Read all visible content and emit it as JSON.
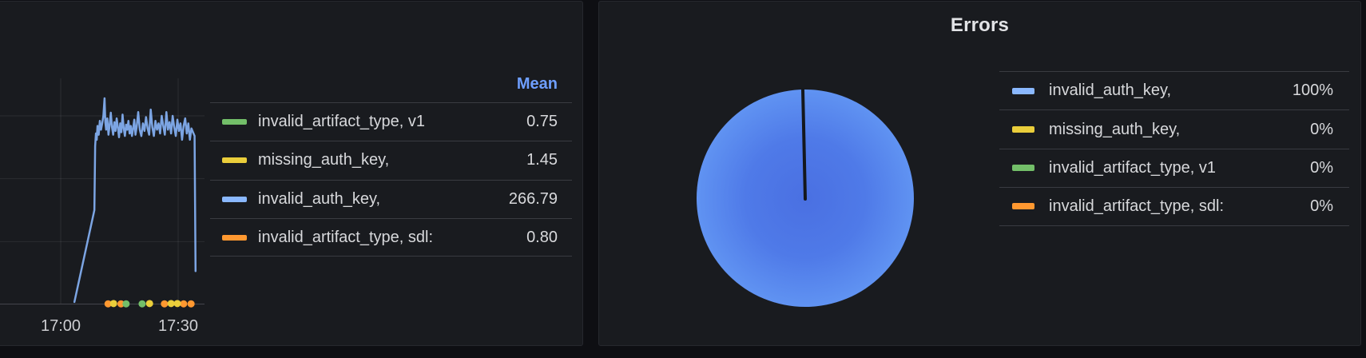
{
  "page": {
    "background": "#0e0f13",
    "panel_background": "#191b1f"
  },
  "left_panel": {
    "legend": {
      "header": "Mean",
      "rows": [
        {
          "label": "invalid_artifact_type, v1",
          "value": "0.75",
          "color": "#73bf69"
        },
        {
          "label": "missing_auth_key,",
          "value": "1.45",
          "color": "#eace3b"
        },
        {
          "label": "invalid_auth_key,",
          "value": "266.79",
          "color": "#8ab8ff"
        },
        {
          "label": "invalid_artifact_type, sdl:",
          "value": "0.80",
          "color": "#ff9830"
        }
      ]
    }
  },
  "right_panel": {
    "title": "Errors",
    "legend_rows": [
      {
        "label": "invalid_auth_key,",
        "value": "100%",
        "color": "#8ab8ff"
      },
      {
        "label": "missing_auth_key,",
        "value": "0%",
        "color": "#eace3b"
      },
      {
        "label": "invalid_artifact_type, v1",
        "value": "0%",
        "color": "#73bf69"
      },
      {
        "label": "invalid_artifact_type, sdl:",
        "value": "0%",
        "color": "#ff9830"
      }
    ]
  },
  "chart_data": [
    {
      "type": "line",
      "title": "",
      "xlabel": "",
      "ylabel": "",
      "x_axis": {
        "unit": "minutes after 17:00",
        "ticks": [
          {
            "minute": 0,
            "label": "17:00"
          },
          {
            "minute": 30,
            "label": "17:30"
          }
        ]
      },
      "y_axis": {
        "min": 0,
        "max": 360,
        "gridline_values": [
          100,
          200,
          300
        ]
      },
      "legend_stat": "Mean",
      "grid": true,
      "series": [
        {
          "name": "invalid_auth_key,",
          "color": "#8ab8ff",
          "mean": 266.79,
          "style": "line",
          "points": [
            [
              3.5,
              4
            ],
            [
              8.6,
              150
            ],
            [
              8.8,
              252
            ],
            [
              9.0,
              272
            ],
            [
              9.2,
              262
            ],
            [
              9.4,
              284
            ],
            [
              9.7,
              270
            ],
            [
              10.0,
              292
            ],
            [
              10.3,
              278
            ],
            [
              10.6,
              288
            ],
            [
              10.9,
              300
            ],
            [
              11.2,
              328
            ],
            [
              11.4,
              290
            ],
            [
              11.6,
              278
            ],
            [
              11.9,
              296
            ],
            [
              12.2,
              270
            ],
            [
              12.5,
              285
            ],
            [
              12.8,
              305
            ],
            [
              13.1,
              282
            ],
            [
              13.4,
              270
            ],
            [
              13.7,
              290
            ],
            [
              14.0,
              276
            ],
            [
              14.3,
              296
            ],
            [
              14.6,
              282
            ],
            [
              14.9,
              266
            ],
            [
              15.2,
              288
            ],
            [
              15.5,
              274
            ],
            [
              15.8,
              302
            ],
            [
              16.1,
              280
            ],
            [
              16.4,
              268
            ],
            [
              16.7,
              286
            ],
            [
              17.0,
              278
            ],
            [
              17.3,
              292
            ],
            [
              17.6,
              272
            ],
            [
              17.9,
              284
            ],
            [
              18.2,
              268
            ],
            [
              18.5,
              280
            ],
            [
              18.8,
              294
            ],
            [
              19.1,
              270
            ],
            [
              19.4,
              282
            ],
            [
              19.8,
              306
            ],
            [
              20.2,
              278
            ],
            [
              20.6,
              268
            ],
            [
              21.0,
              288
            ],
            [
              21.4,
              276
            ],
            [
              21.8,
              298
            ],
            [
              22.2,
              280
            ],
            [
              22.6,
              270
            ],
            [
              23.0,
              310
            ],
            [
              23.4,
              282
            ],
            [
              23.8,
              268
            ],
            [
              24.2,
              292
            ],
            [
              24.6,
              278
            ],
            [
              25.0,
              288
            ],
            [
              25.4,
              272
            ],
            [
              25.8,
              300
            ],
            [
              26.2,
              284
            ],
            [
              26.6,
              270
            ],
            [
              27.0,
              306
            ],
            [
              27.4,
              278
            ],
            [
              27.8,
              290
            ],
            [
              28.2,
              272
            ],
            [
              28.6,
              300
            ],
            [
              29.0,
              282
            ],
            [
              29.4,
              268
            ],
            [
              29.8,
              294
            ],
            [
              30.2,
              276
            ],
            [
              30.6,
              288
            ],
            [
              31.0,
              262
            ],
            [
              31.4,
              284
            ],
            [
              31.8,
              296
            ],
            [
              32.2,
              272
            ],
            [
              32.6,
              288
            ],
            [
              33.0,
              262
            ],
            [
              33.4,
              280
            ],
            [
              33.8,
              274
            ],
            [
              34.2,
              268
            ],
            [
              34.45,
              53
            ]
          ]
        },
        {
          "name": "invalid_artifact_type, sdl:",
          "color": "#ff9830",
          "mean": 0.8,
          "style": "points",
          "points": [
            [
              12.1,
              1
            ],
            [
              15.4,
              1
            ],
            [
              26.5,
              1
            ],
            [
              31.4,
              1
            ],
            [
              33.3,
              1
            ]
          ]
        },
        {
          "name": "missing_auth_key,",
          "color": "#eace3b",
          "mean": 1.45,
          "style": "points",
          "points": [
            [
              13.5,
              1.5
            ],
            [
              22.7,
              1.5
            ],
            [
              28.2,
              1.5
            ],
            [
              29.8,
              1.5
            ]
          ]
        },
        {
          "name": "invalid_artifact_type, v1",
          "color": "#73bf69",
          "mean": 0.75,
          "style": "points",
          "points": [
            [
              16.7,
              1
            ],
            [
              20.8,
              1
            ]
          ]
        }
      ]
    },
    {
      "type": "pie",
      "title": "Errors",
      "legend_position": "right",
      "gradient": {
        "center": "#4a70e2",
        "edge": "#6093f2"
      },
      "slices": [
        {
          "label": "invalid_auth_key,",
          "percent": 100,
          "color": "#5b8df0"
        },
        {
          "label": "missing_auth_key,",
          "percent": 0,
          "color": "#eace3b"
        },
        {
          "label": "invalid_artifact_type, v1",
          "percent": 0,
          "color": "#73bf69"
        },
        {
          "label": "invalid_artifact_type, sdl:",
          "percent": 0,
          "color": "#ff9830"
        }
      ]
    }
  ]
}
